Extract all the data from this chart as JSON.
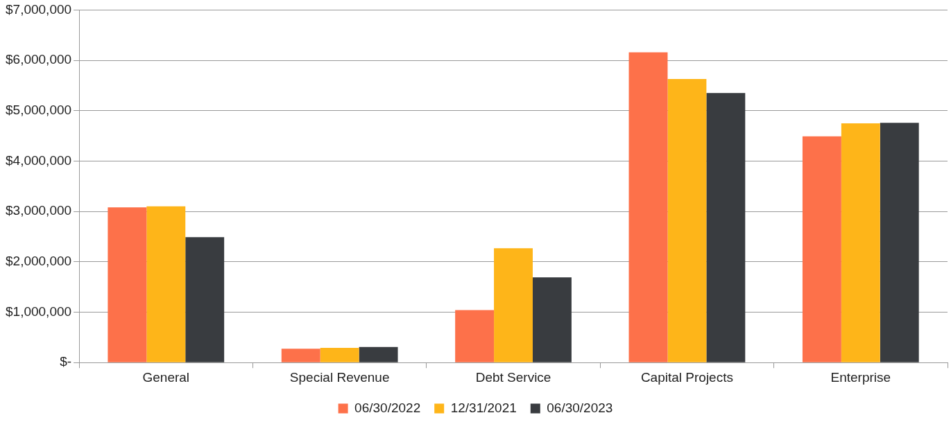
{
  "chart_data": {
    "type": "bar",
    "categories": [
      "General",
      "Special Revenue",
      "Debt Service",
      "Capital Projects",
      "Enterprise"
    ],
    "series": [
      {
        "name": "06/30/2022",
        "color": "#fd714a",
        "values": [
          3080000,
          275000,
          1040000,
          6160000,
          4490000
        ]
      },
      {
        "name": "12/31/2021",
        "color": "#feb519",
        "values": [
          3100000,
          290000,
          2270000,
          5630000,
          4750000
        ]
      },
      {
        "name": "06/30/2023",
        "color": "#393c40",
        "values": [
          2490000,
          310000,
          1690000,
          5350000,
          4760000
        ]
      }
    ],
    "ylim": [
      0,
      7000000
    ],
    "yticks": [
      {
        "value": 0,
        "label": "$-"
      },
      {
        "value": 1000000,
        "label": "$1,000,000"
      },
      {
        "value": 2000000,
        "label": "$2,000,000"
      },
      {
        "value": 3000000,
        "label": "$3,000,000"
      },
      {
        "value": 4000000,
        "label": "$4,000,000"
      },
      {
        "value": 5000000,
        "label": "$5,000,000"
      },
      {
        "value": 6000000,
        "label": "$6,000,000"
      },
      {
        "value": 7000000,
        "label": "$7,000,000"
      }
    ],
    "grid": "y",
    "legend": "bottom"
  }
}
